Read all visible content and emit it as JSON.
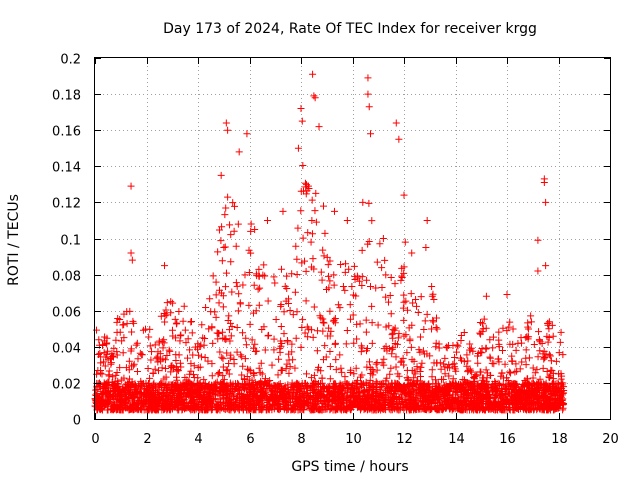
{
  "chart_data": {
    "type": "scatter",
    "title": "Day 173 of 2024, Rate Of TEC Index for receiver krgg",
    "xlabel": "GPS time / hours",
    "ylabel": "ROTI / TECUs",
    "xlim": [
      0,
      20
    ],
    "ylim": [
      0,
      0.2
    ],
    "xticks": [
      "0",
      "2",
      "4",
      "6",
      "8",
      "10",
      "12",
      "14",
      "16",
      "18",
      "20"
    ],
    "yticks": [
      "0",
      "0.02",
      "0.04",
      "0.06",
      "0.08",
      "0.1",
      "0.12",
      "0.14",
      "0.16",
      "0.18",
      "0.2"
    ],
    "grid": true,
    "marker": "+",
    "color": "#ff0000",
    "series": [
      {
        "name": "ROTI",
        "x_range_hours": [
          0,
          18.2
        ],
        "envelope_upper": [
          {
            "x": 0.0,
            "y": 0.055
          },
          {
            "x": 0.5,
            "y": 0.045
          },
          {
            "x": 1.0,
            "y": 0.06
          },
          {
            "x": 1.5,
            "y": 0.06
          },
          {
            "x": 2.0,
            "y": 0.05
          },
          {
            "x": 2.5,
            "y": 0.06
          },
          {
            "x": 3.0,
            "y": 0.07
          },
          {
            "x": 3.5,
            "y": 0.065
          },
          {
            "x": 4.0,
            "y": 0.05
          },
          {
            "x": 4.5,
            "y": 0.07
          },
          {
            "x": 5.0,
            "y": 0.13
          },
          {
            "x": 5.5,
            "y": 0.12
          },
          {
            "x": 6.0,
            "y": 0.12
          },
          {
            "x": 6.5,
            "y": 0.09
          },
          {
            "x": 7.0,
            "y": 0.085
          },
          {
            "x": 7.5,
            "y": 0.09
          },
          {
            "x": 8.0,
            "y": 0.14
          },
          {
            "x": 8.5,
            "y": 0.15
          },
          {
            "x": 9.0,
            "y": 0.11
          },
          {
            "x": 9.5,
            "y": 0.09
          },
          {
            "x": 10.0,
            "y": 0.085
          },
          {
            "x": 10.5,
            "y": 0.13
          },
          {
            "x": 11.0,
            "y": 0.1
          },
          {
            "x": 11.5,
            "y": 0.085
          },
          {
            "x": 12.0,
            "y": 0.09
          },
          {
            "x": 12.5,
            "y": 0.065
          },
          {
            "x": 13.0,
            "y": 0.08
          },
          {
            "x": 13.5,
            "y": 0.045
          },
          {
            "x": 14.0,
            "y": 0.045
          },
          {
            "x": 14.5,
            "y": 0.05
          },
          {
            "x": 15.0,
            "y": 0.06
          },
          {
            "x": 15.5,
            "y": 0.045
          },
          {
            "x": 16.0,
            "y": 0.06
          },
          {
            "x": 16.5,
            "y": 0.045
          },
          {
            "x": 17.0,
            "y": 0.06
          },
          {
            "x": 17.5,
            "y": 0.06
          },
          {
            "x": 18.0,
            "y": 0.045
          },
          {
            "x": 18.2,
            "y": 0.04
          }
        ],
        "baseline_range": [
          0.005,
          0.02
        ],
        "outliers": [
          {
            "x": 1.4,
            "y": 0.129
          },
          {
            "x": 1.4,
            "y": 0.092
          },
          {
            "x": 1.45,
            "y": 0.088
          },
          {
            "x": 2.7,
            "y": 0.085
          },
          {
            "x": 4.9,
            "y": 0.135
          },
          {
            "x": 5.1,
            "y": 0.164
          },
          {
            "x": 5.15,
            "y": 0.16
          },
          {
            "x": 5.6,
            "y": 0.148
          },
          {
            "x": 5.9,
            "y": 0.158
          },
          {
            "x": 8.0,
            "y": 0.172
          },
          {
            "x": 8.05,
            "y": 0.165
          },
          {
            "x": 8.45,
            "y": 0.191
          },
          {
            "x": 8.5,
            "y": 0.179
          },
          {
            "x": 8.55,
            "y": 0.178
          },
          {
            "x": 8.7,
            "y": 0.162
          },
          {
            "x": 10.6,
            "y": 0.189
          },
          {
            "x": 10.6,
            "y": 0.18
          },
          {
            "x": 10.65,
            "y": 0.173
          },
          {
            "x": 10.7,
            "y": 0.158
          },
          {
            "x": 11.7,
            "y": 0.164
          },
          {
            "x": 11.8,
            "y": 0.155
          },
          {
            "x": 12.0,
            "y": 0.124
          },
          {
            "x": 12.9,
            "y": 0.11
          },
          {
            "x": 12.85,
            "y": 0.095
          },
          {
            "x": 17.2,
            "y": 0.099
          },
          {
            "x": 17.2,
            "y": 0.082
          },
          {
            "x": 17.45,
            "y": 0.133
          },
          {
            "x": 17.45,
            "y": 0.131
          },
          {
            "x": 17.5,
            "y": 0.12
          },
          {
            "x": 17.5,
            "y": 0.085
          },
          {
            "x": 13.1,
            "y": 0.068
          },
          {
            "x": 15.2,
            "y": 0.068
          },
          {
            "x": 16.0,
            "y": 0.069
          },
          {
            "x": 18.1,
            "y": 0.048
          },
          {
            "x": 6.2,
            "y": 0.105
          },
          {
            "x": 6.7,
            "y": 0.11
          },
          {
            "x": 7.3,
            "y": 0.115
          },
          {
            "x": 7.9,
            "y": 0.15
          },
          {
            "x": 9.3,
            "y": 0.115
          },
          {
            "x": 9.8,
            "y": 0.11
          },
          {
            "x": 10.4,
            "y": 0.12
          },
          {
            "x": 11.2,
            "y": 0.1
          },
          {
            "x": 12.3,
            "y": 0.092
          },
          {
            "x": 12.05,
            "y": 0.098
          }
        ]
      }
    ]
  }
}
